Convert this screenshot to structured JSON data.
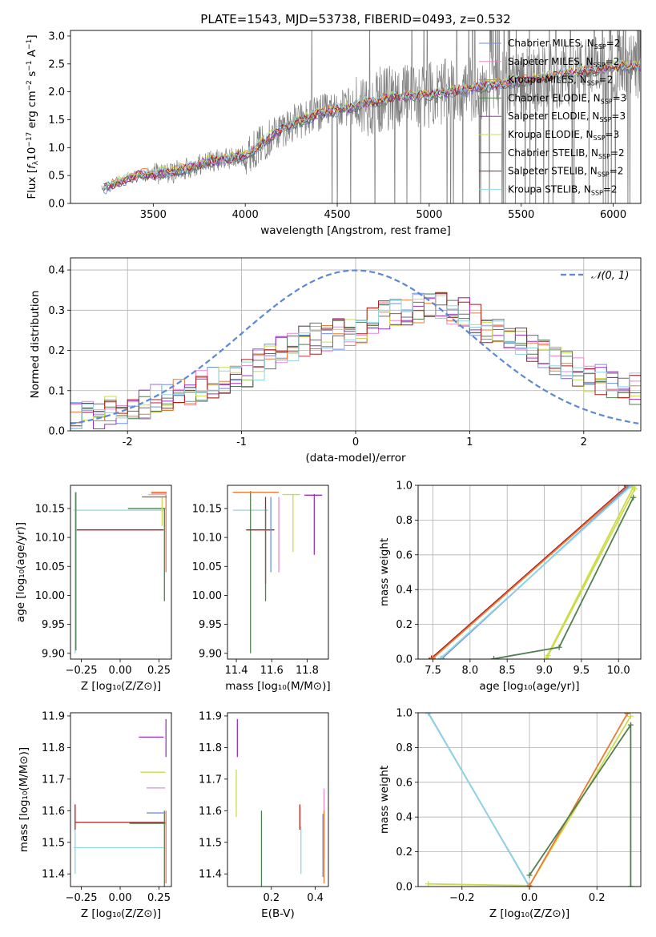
{
  "title": "PLATE=1543, MJD=53738, FIBERID=0493, z=0.532",
  "colors": {
    "chabrier_miles": "#6f8fe6",
    "salpeter_miles": "#e58ad0",
    "kroupa_miles": "#ec7a32",
    "chabrier_elodie": "#4f7f4f",
    "salpeter_elodie": "#9d2fc2",
    "kroupa_elodie": "#ccdc4a",
    "chabrier_stelib": "#6b6b6b",
    "salpeter_stelib": "#a61f1f",
    "kroupa_stelib": "#8fd6e3",
    "gaussian": "#5b88d8",
    "observed": "#7f7f7f"
  },
  "legend_spectrum": [
    {
      "model": "Chabrier MILES",
      "nssp": "=2",
      "color": "#6f8fe6"
    },
    {
      "model": "Salpeter MILES",
      "nssp": "=2",
      "color": "#e58ad0"
    },
    {
      "model": "Kroupa MILES",
      "nssp": "=2",
      "color": "#ec7a32"
    },
    {
      "model": "Chabrier ELODIE",
      "nssp": "=3",
      "color": "#4f7f4f"
    },
    {
      "model": "Salpeter ELODIE",
      "nssp": "=3",
      "color": "#9d2fc2"
    },
    {
      "model": "Kroupa ELODIE",
      "nssp": "=3",
      "color": "#ccdc4a"
    },
    {
      "model": "Chabrier STELIB",
      "nssp": "=2",
      "color": "#6b6b6b"
    },
    {
      "model": "Salpeter STELIB",
      "nssp": "=2",
      "color": "#a61f1f"
    },
    {
      "model": "Kroupa STELIB",
      "nssp": "=2",
      "color": "#8fd6e3"
    }
  ],
  "legend_gauss": "𝒩(0, 1)",
  "chart_data": [
    {
      "id": "spectrum",
      "type": "line",
      "xlabel": "wavelength [Angstrom, rest frame]",
      "ylabel_parts": [
        "Flux [",
        "f",
        "λ",
        "10",
        "−17",
        " erg cm",
        "−2",
        " s",
        "−1",
        " A",
        "−1",
        "]"
      ],
      "xlim": [
        3050,
        6150
      ],
      "ylim": [
        0,
        3.1
      ],
      "xticks": [
        3500,
        4000,
        4500,
        5000,
        5500,
        6000
      ],
      "yticks": [
        0.0,
        0.5,
        1.0,
        1.5,
        2.0,
        2.5,
        3.0
      ],
      "model_continuum": {
        "x": [
          3220,
          3400,
          3600,
          3800,
          4000,
          4200,
          4400,
          4600,
          4800,
          5000,
          5200,
          5400,
          5600,
          5800,
          6000
        ],
        "y": [
          0.25,
          0.5,
          0.55,
          0.75,
          0.85,
          1.35,
          1.6,
          1.75,
          1.9,
          1.95,
          2.05,
          2.15,
          2.25,
          2.35,
          2.45
        ]
      }
    },
    {
      "id": "residuals",
      "type": "step",
      "xlabel": "(data-model)/error",
      "ylabel": "Normed distribution",
      "xlim": [
        -2.5,
        2.5
      ],
      "ylim": [
        0,
        0.43
      ],
      "xticks": [
        -2,
        -1,
        0,
        1,
        2
      ],
      "yticks": [
        0.0,
        0.1,
        0.2,
        0.3,
        0.4
      ],
      "gaussian": {
        "mean": 0,
        "sigma": 1,
        "style": "dashed"
      },
      "bin_width": 0.1,
      "shape": {
        "x": [
          -2.5,
          -2.0,
          -1.5,
          -1.0,
          -0.5,
          0.0,
          0.3,
          0.6,
          0.9,
          1.2,
          1.5,
          1.8,
          2.1,
          2.5
        ],
        "y": [
          0.03,
          0.055,
          0.1,
          0.14,
          0.22,
          0.25,
          0.29,
          0.31,
          0.3,
          0.25,
          0.21,
          0.17,
          0.13,
          0.1
        ]
      }
    },
    {
      "id": "age_vs_z",
      "type": "errorbar",
      "xlabel": "Z [log₁₀(Z/Z⊙)]",
      "ylabel": "age  [log₁₀(age/yr)]",
      "xlim": [
        -0.32,
        0.33
      ],
      "ylim": [
        9.89,
        10.19
      ],
      "xticks": [
        -0.25,
        0.0,
        0.25
      ],
      "xticklabels": [
        "−0.25",
        "0.00",
        "0.25"
      ],
      "yticks": [
        9.9,
        9.95,
        10.0,
        10.05,
        10.1,
        10.15
      ],
      "yticklabels": [
        "9.90",
        "9.95",
        "10.00",
        "10.05",
        "10.10",
        "10.15"
      ],
      "points": [
        {
          "color": "#a61f1f",
          "x": 0.02,
          "xerr": [
            0.3,
            0.26
          ],
          "y": 10.113,
          "yerr": [
            0.0,
            0.0
          ]
        },
        {
          "color": "#8fd6e3",
          "x": 0.0,
          "xerr": [
            0.3,
            0.28
          ],
          "y": 10.147,
          "yerr": [
            0.0,
            0.0
          ]
        },
        {
          "color": "#8fd6e3",
          "x": -0.29,
          "xerr": [
            0.0,
            0.0
          ],
          "y": 10.02,
          "yerr": [
            0.12,
            0.158
          ]
        },
        {
          "color": "#4f7f4f",
          "x": -0.285,
          "xerr": [
            0.0,
            0.0
          ],
          "y": 10.03,
          "yerr": [
            0.125,
            0.148
          ]
        },
        {
          "color": "#4f7f4f",
          "x": 0.17,
          "xerr": [
            0.12,
            0.12
          ],
          "y": 10.15,
          "yerr": [
            0.0,
            0.0
          ]
        },
        {
          "color": "#4f7f4f",
          "x": 0.285,
          "xerr": [
            0.0,
            0.0
          ],
          "y": 10.07,
          "yerr": [
            0.08,
            0.08
          ]
        },
        {
          "color": "#ec7a32",
          "x": 0.295,
          "xerr": [
            0.0,
            0.0
          ],
          "y": 10.11,
          "yerr": [
            0.07,
            0.066
          ]
        },
        {
          "color": "#ccdc4a",
          "x": 0.27,
          "xerr": [
            0.0,
            0.0
          ],
          "y": 10.15,
          "yerr": [
            0.03,
            0.02
          ]
        },
        {
          "color": "#6b6b6b",
          "x": 0.24,
          "xerr": [
            0.1,
            0.06
          ],
          "y": 10.17,
          "yerr": [
            0.0,
            0.0
          ]
        },
        {
          "color": "#e58ad0",
          "x": 0.26,
          "xerr": [
            0.06,
            0.04
          ],
          "y": 10.176,
          "yerr": [
            0.0,
            0.0
          ]
        },
        {
          "color": "#ec7a32",
          "x": 0.25,
          "xerr": [
            0.05,
            0.05
          ],
          "y": 10.178,
          "yerr": [
            0.0,
            0.0
          ]
        },
        {
          "color": "#ccdc4a",
          "x": 0.24,
          "xerr": [
            0.06,
            0.06
          ],
          "y": 10.174,
          "yerr": [
            0.0,
            0.0
          ]
        }
      ]
    },
    {
      "id": "age_vs_mass",
      "type": "errorbar",
      "xlabel": "mass [log₁₀(M/M⊙)]",
      "ylabel": "",
      "xlim": [
        11.35,
        11.92
      ],
      "ylim": [
        9.89,
        10.19
      ],
      "xticks": [
        11.4,
        11.6,
        11.8
      ],
      "xticklabels": [
        "11.4",
        "11.6",
        "11.8"
      ],
      "yticks": [
        9.9,
        9.95,
        10.0,
        10.05,
        10.1,
        10.15
      ],
      "yticklabels": [
        "9.90",
        "9.95",
        "10.00",
        "10.05",
        "10.10",
        "10.15"
      ],
      "points": [
        {
          "color": "#8fd6e3",
          "x": 11.48,
          "xerr": [
            0.1,
            0.1
          ],
          "y": 10.147,
          "yerr": [
            0.0,
            0.0
          ]
        },
        {
          "color": "#4f7f4f",
          "x": 11.48,
          "xerr": [
            0.0,
            0.0
          ],
          "y": 10.04,
          "yerr": [
            0.14,
            0.14
          ]
        },
        {
          "color": "#a61f1f",
          "x": 11.555,
          "xerr": [
            0.1,
            0.06
          ],
          "y": 10.113,
          "yerr": [
            0.0,
            0.0
          ]
        },
        {
          "color": "#a61f1f",
          "x": 11.565,
          "xerr": [
            0.0,
            0.0
          ],
          "y": 10.09,
          "yerr": [
            0.07,
            0.08
          ]
        },
        {
          "color": "#4f7f4f",
          "x": 11.565,
          "xerr": [
            0.0,
            0.0
          ],
          "y": 10.07,
          "yerr": [
            0.08,
            0.08
          ]
        },
        {
          "color": "#6f8fe6",
          "x": 11.595,
          "xerr": [
            0.0,
            0.0
          ],
          "y": 10.11,
          "yerr": [
            0.07,
            0.06
          ]
        },
        {
          "color": "#ec7a32",
          "x": 11.64,
          "xerr": [
            0.26,
            0.0
          ],
          "y": 10.178,
          "yerr": [
            0.0,
            0.0
          ]
        },
        {
          "color": "#e58ad0",
          "x": 11.64,
          "xerr": [
            0.0,
            0.0
          ],
          "y": 10.11,
          "yerr": [
            0.07,
            0.06
          ]
        },
        {
          "color": "#ccdc4a",
          "x": 11.72,
          "xerr": [
            0.06,
            0.04
          ],
          "y": 10.174,
          "yerr": [
            0.0,
            0.0
          ]
        },
        {
          "color": "#ccdc4a",
          "x": 11.72,
          "xerr": [
            0.0,
            0.0
          ],
          "y": 10.12,
          "yerr": [
            0.045,
            0.055
          ]
        },
        {
          "color": "#9d2fc2",
          "x": 11.835,
          "xerr": [
            0.05,
            0.05
          ],
          "y": 10.173,
          "yerr": [
            0.0,
            0.0
          ]
        },
        {
          "color": "#9d2fc2",
          "x": 11.84,
          "xerr": [
            0.0,
            0.0
          ],
          "y": 10.12,
          "yerr": [
            0.05,
            0.055
          ]
        }
      ]
    },
    {
      "id": "weight_vs_age",
      "type": "line",
      "xlabel": "age  [log₁₀(age/yr)]",
      "ylabel": "mass weight",
      "xlim": [
        7.3,
        10.3
      ],
      "ylim": [
        0,
        1.0
      ],
      "xticks": [
        7.5,
        8.0,
        8.5,
        9.0,
        9.5,
        10.0
      ],
      "xticklabels": [
        "7.5",
        "8.0",
        "8.5",
        "9.0",
        "9.5",
        "10.0"
      ],
      "yticks": [
        0,
        0.2,
        0.4,
        0.6,
        0.8,
        1.0
      ],
      "yticklabels": [
        "0.0",
        "0.2",
        "0.4",
        "0.6",
        "0.8",
        "1.0"
      ],
      "series": [
        {
          "color": "#a61f1f",
          "x": [
            7.48,
            10.11
          ],
          "y": [
            0.005,
            0.995
          ]
        },
        {
          "color": "#ec7a32",
          "x": [
            7.5,
            10.13
          ],
          "y": [
            0.005,
            0.995
          ]
        },
        {
          "color": "#6f8fe6",
          "x": [
            7.62,
            10.15
          ],
          "y": [
            0.003,
            0.997
          ]
        },
        {
          "color": "#8fd6e3",
          "x": [
            7.6,
            10.17
          ],
          "y": [
            0.003,
            0.997
          ]
        },
        {
          "color": "#ccdc4a",
          "x": [
            9.03,
            10.2
          ],
          "y": [
            0.01,
            0.99
          ]
        },
        {
          "color": "#ccdc4a",
          "x": [
            9.05,
            10.22
          ],
          "y": [
            0.02,
            0.98
          ]
        },
        {
          "color": "#4f7f4f",
          "x": [
            8.32,
            9.2,
            10.2
          ],
          "y": [
            0.002,
            0.068,
            0.93
          ]
        }
      ]
    },
    {
      "id": "mass_vs_z",
      "type": "errorbar",
      "xlabel": "Z [log₁₀(Z/Z⊙)]",
      "ylabel": "mass [log₁₀(M/M⊙)]",
      "xlim": [
        -0.32,
        0.33
      ],
      "ylim": [
        11.36,
        11.91
      ],
      "xticks": [
        -0.25,
        0.0,
        0.25
      ],
      "xticklabels": [
        "−0.25",
        "0.00",
        "0.25"
      ],
      "yticks": [
        11.4,
        11.5,
        11.6,
        11.7,
        11.8,
        11.9
      ],
      "yticklabels": [
        "11.4",
        "11.5",
        "11.6",
        "11.7",
        "11.8",
        "11.9"
      ],
      "points": [
        {
          "color": "#a61f1f",
          "x": 0.0,
          "xerr": [
            0.29,
            0.29
          ],
          "y": 11.563,
          "yerr": [
            0.0,
            0.0
          ]
        },
        {
          "color": "#a61f1f",
          "x": -0.29,
          "xerr": [
            0.0,
            0.0
          ],
          "y": 11.57,
          "yerr": [
            0.03,
            0.05
          ]
        },
        {
          "color": "#8fd6e3",
          "x": 0.0,
          "xerr": [
            0.3,
            0.28
          ],
          "y": 11.483,
          "yerr": [
            0.0,
            0.0
          ]
        },
        {
          "color": "#8fd6e3",
          "x": -0.29,
          "xerr": [
            0.0,
            0.0
          ],
          "y": 11.47,
          "yerr": [
            0.07,
            0.07
          ]
        },
        {
          "color": "#4f7f4f",
          "x": 0.17,
          "xerr": [
            0.11,
            0.12
          ],
          "y": 11.56,
          "yerr": [
            0.0,
            0.0
          ]
        },
        {
          "color": "#4f7f4f",
          "x": 0.285,
          "xerr": [
            0.0,
            0.0
          ],
          "y": 11.48,
          "yerr": [
            0.12,
            0.12
          ]
        },
        {
          "color": "#6f8fe6",
          "x": 0.23,
          "xerr": [
            0.06,
            0.06
          ],
          "y": 11.593,
          "yerr": [
            0.0,
            0.0
          ]
        },
        {
          "color": "#e58ad0",
          "x": 0.23,
          "xerr": [
            0.06,
            0.06
          ],
          "y": 11.672,
          "yerr": [
            0.0,
            0.0
          ]
        },
        {
          "color": "#ccdc4a",
          "x": 0.21,
          "xerr": [
            0.08,
            0.08
          ],
          "y": 11.722,
          "yerr": [
            0.0,
            0.0
          ]
        },
        {
          "color": "#9d2fc2",
          "x": 0.2,
          "xerr": [
            0.08,
            0.08
          ],
          "y": 11.833,
          "yerr": [
            0.0,
            0.0
          ]
        },
        {
          "color": "#9d2fc2",
          "x": 0.295,
          "xerr": [
            0.0,
            0.0
          ],
          "y": 11.82,
          "yerr": [
            0.05,
            0.07
          ]
        },
        {
          "color": "#ec7a32",
          "x": 0.295,
          "xerr": [
            0.0,
            0.0
          ],
          "y": 11.48,
          "yerr": [
            0.11,
            0.12
          ]
        }
      ]
    },
    {
      "id": "mass_vs_ebv",
      "type": "errorbar",
      "xlabel": "E(B-V)",
      "ylabel": "",
      "xlim": [
        0.0,
        0.46
      ],
      "ylim": [
        11.36,
        11.91
      ],
      "xticks": [
        0.2,
        0.4
      ],
      "xticklabels": [
        "0.2",
        "0.4"
      ],
      "yticks": [
        11.4,
        11.5,
        11.6,
        11.7,
        11.8,
        11.9
      ],
      "yticklabels": [
        "11.4",
        "11.5",
        "11.6",
        "11.7",
        "11.8",
        "11.9"
      ],
      "points": [
        {
          "color": "#ccdc4a",
          "x": 0.04,
          "xerr": [
            0.0,
            0.0
          ],
          "y": 11.65,
          "yerr": [
            0.07,
            0.08
          ]
        },
        {
          "color": "#9d2fc2",
          "x": 0.045,
          "xerr": [
            0.0,
            0.0
          ],
          "y": 11.82,
          "yerr": [
            0.05,
            0.07
          ]
        },
        {
          "color": "#4f7f4f",
          "x": 0.155,
          "xerr": [
            0.0,
            0.0
          ],
          "y": 11.48,
          "yerr": [
            0.12,
            0.12
          ]
        },
        {
          "color": "#a61f1f",
          "x": 0.33,
          "xerr": [
            0.0,
            0.0
          ],
          "y": 11.57,
          "yerr": [
            0.03,
            0.05
          ]
        },
        {
          "color": "#8fd6e3",
          "x": 0.335,
          "xerr": [
            0.0,
            0.0
          ],
          "y": 11.47,
          "yerr": [
            0.07,
            0.08
          ]
        },
        {
          "color": "#6f8fe6",
          "x": 0.435,
          "xerr": [
            0.0,
            0.0
          ],
          "y": 11.49,
          "yerr": [
            0.1,
            0.1
          ]
        },
        {
          "color": "#e58ad0",
          "x": 0.44,
          "xerr": [
            0.0,
            0.0
          ],
          "y": 11.55,
          "yerr": [
            0.1,
            0.12
          ]
        },
        {
          "color": "#ec7a32",
          "x": 0.44,
          "xerr": [
            0.0,
            0.0
          ],
          "y": 11.48,
          "yerr": [
            0.11,
            0.12
          ]
        }
      ]
    },
    {
      "id": "weight_vs_z",
      "type": "line",
      "xlabel": "Z [log₁₀(Z/Z⊙)]",
      "ylabel": "mass weight",
      "xlim": [
        -0.33,
        0.33
      ],
      "ylim": [
        0,
        1.0
      ],
      "xticks": [
        -0.2,
        0.0,
        0.2
      ],
      "xticklabels": [
        "−0.2",
        "0.0",
        "0.2"
      ],
      "yticks": [
        0,
        0.2,
        0.4,
        0.6,
        0.8,
        1.0
      ],
      "yticklabels": [
        "0.0",
        "0.2",
        "0.4",
        "0.6",
        "0.8",
        "1.0"
      ],
      "series": [
        {
          "color": "#6f8fe6",
          "x": [
            -0.3,
            0.0
          ],
          "y": [
            1.0,
            0.0
          ]
        },
        {
          "color": "#8fd6e3",
          "x": [
            -0.3,
            0.0
          ],
          "y": [
            0.997,
            0.003
          ]
        },
        {
          "color": "#ccdc4a",
          "x": [
            -0.3,
            0.0,
            0.3
          ],
          "y": [
            0.015,
            0.005,
            0.98
          ]
        },
        {
          "color": "#ec7a32",
          "x": [
            0.0,
            0.29
          ],
          "y": [
            0.005,
            0.995
          ]
        },
        {
          "color": "#4f7f4f",
          "x": [
            0.0,
            0.3,
            0.3
          ],
          "y": [
            0.065,
            0.93,
            0.0
          ]
        }
      ]
    }
  ]
}
